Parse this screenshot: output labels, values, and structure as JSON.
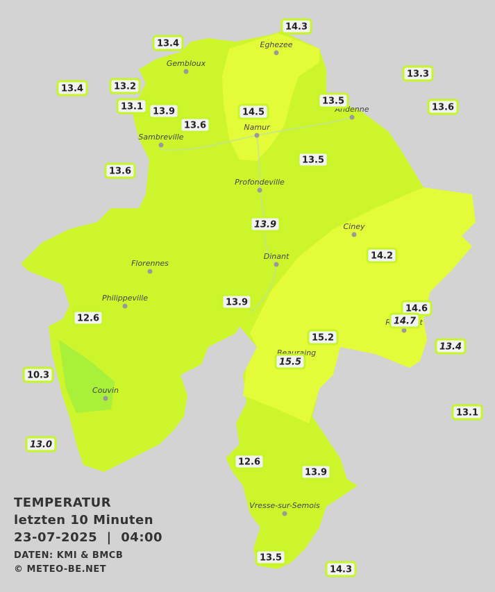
{
  "title": {
    "lines": [
      "TEMPERATUR",
      "letzten 10 Minuten",
      "23-07-2025  |  04:00"
    ],
    "source": "DATEN: KMI & BMCB",
    "copyright": "© METEO-BE.NET"
  },
  "towns": [
    "Eghezee",
    "Gembloux",
    "Andenne",
    "Namur",
    "Sambreville",
    "Profondeville",
    "Ciney",
    "Dinant",
    "Florennes",
    "Philippeville",
    "Rochefort",
    "Beauraing",
    "Couvin",
    "Vresse-sur-Semois"
  ],
  "stations": [
    {
      "label": "13.4"
    },
    {
      "label": "14.3"
    },
    {
      "label": "13.3"
    },
    {
      "label": "13.4"
    },
    {
      "label": "13.2"
    },
    {
      "label": "13.5"
    },
    {
      "label": "13.6"
    },
    {
      "label": "13.1"
    },
    {
      "label": "13.9"
    },
    {
      "label": "14.5"
    },
    {
      "label": "13.6"
    },
    {
      "label": "13.6"
    },
    {
      "label": "13.5"
    },
    {
      "label": "13.9",
      "italic": true
    },
    {
      "label": "14.2"
    },
    {
      "label": "13.9"
    },
    {
      "label": "14.6"
    },
    {
      "label": "14.7",
      "italic": true
    },
    {
      "label": "12.6"
    },
    {
      "label": "15.2"
    },
    {
      "label": "13.4",
      "italic": true
    },
    {
      "label": "15.5",
      "italic": true
    },
    {
      "label": "10.3"
    },
    {
      "label": "13.1"
    },
    {
      "label": "13.0",
      "italic": true
    },
    {
      "label": "12.6"
    },
    {
      "label": "13.9"
    },
    {
      "label": "13.5"
    },
    {
      "label": "14.3"
    }
  ]
}
